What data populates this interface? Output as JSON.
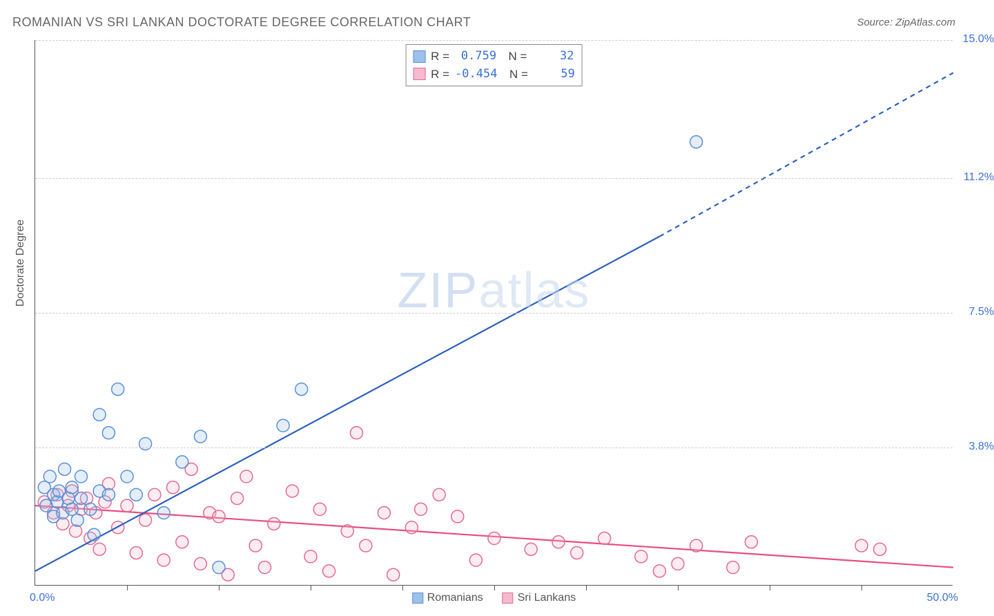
{
  "title": "ROMANIAN VS SRI LANKAN DOCTORATE DEGREE CORRELATION CHART",
  "source": "Source: ZipAtlas.com",
  "y_axis_label": "Doctorate Degree",
  "watermark": "ZIPatlas",
  "chart": {
    "type": "scatter",
    "xlim": [
      0,
      50
    ],
    "ylim": [
      0,
      15
    ],
    "x_min_label": "0.0%",
    "x_max_label": "50.0%",
    "x_tick_positions": [
      5,
      10,
      15,
      20,
      25,
      30,
      35,
      40,
      45
    ],
    "y_ticks": [
      {
        "v": 15.0,
        "label": "15.0%"
      },
      {
        "v": 11.2,
        "label": "11.2%"
      },
      {
        "v": 7.5,
        "label": "7.5%"
      },
      {
        "v": 3.8,
        "label": "3.8%"
      }
    ],
    "grid_color": "#cccccc",
    "axis_color": "#555555",
    "background_color": "#ffffff",
    "marker_radius": 9,
    "marker_stroke_width": 1.5,
    "marker_fill_opacity": 0.28,
    "trend_line_width": 2.2,
    "series": [
      {
        "name": "Romanians",
        "color": "#5a8fd6",
        "fill": "#9ec1ea",
        "line_color": "#2b5fbf",
        "trend": {
          "x1": 0,
          "y1": 0.4,
          "x2": 34,
          "y2": 9.6,
          "x3": 50,
          "y3": 14.1,
          "dashed_after": 34
        },
        "R": "0.759",
        "N": "32",
        "points": [
          [
            0.5,
            2.7
          ],
          [
            0.6,
            2.2
          ],
          [
            0.8,
            3.0
          ],
          [
            1.0,
            1.9
          ],
          [
            1.0,
            2.5
          ],
          [
            1.2,
            2.3
          ],
          [
            1.3,
            2.6
          ],
          [
            1.5,
            2.0
          ],
          [
            1.6,
            3.2
          ],
          [
            1.8,
            2.4
          ],
          [
            2.0,
            2.1
          ],
          [
            2.0,
            2.7
          ],
          [
            2.3,
            1.8
          ],
          [
            2.5,
            2.4
          ],
          [
            2.5,
            3.0
          ],
          [
            3.0,
            2.1
          ],
          [
            3.2,
            1.4
          ],
          [
            3.5,
            2.6
          ],
          [
            3.5,
            4.7
          ],
          [
            4.0,
            4.2
          ],
          [
            4.0,
            2.5
          ],
          [
            4.5,
            5.4
          ],
          [
            5.0,
            3.0
          ],
          [
            5.5,
            2.5
          ],
          [
            6.0,
            3.9
          ],
          [
            7.0,
            2.0
          ],
          [
            8.0,
            3.4
          ],
          [
            9.0,
            4.1
          ],
          [
            10.0,
            0.5
          ],
          [
            13.5,
            4.4
          ],
          [
            14.5,
            5.4
          ],
          [
            36.0,
            12.2
          ]
        ]
      },
      {
        "name": "Sri Lankans",
        "color": "#e26a8f",
        "fill": "#f7b9cd",
        "line_color": "#e84d7e",
        "trend": {
          "x1": 0,
          "y1": 2.2,
          "x2": 50,
          "y2": 0.5
        },
        "R": "-0.454",
        "N": "59",
        "points": [
          [
            0.5,
            2.3
          ],
          [
            1.0,
            2.0
          ],
          [
            1.2,
            2.5
          ],
          [
            1.5,
            1.7
          ],
          [
            1.8,
            2.2
          ],
          [
            2.0,
            2.6
          ],
          [
            2.2,
            1.5
          ],
          [
            2.5,
            2.1
          ],
          [
            2.8,
            2.4
          ],
          [
            3.0,
            1.3
          ],
          [
            3.3,
            2.0
          ],
          [
            3.5,
            1.0
          ],
          [
            3.8,
            2.3
          ],
          [
            4.0,
            2.8
          ],
          [
            4.5,
            1.6
          ],
          [
            5.0,
            2.2
          ],
          [
            5.5,
            0.9
          ],
          [
            6.0,
            1.8
          ],
          [
            6.5,
            2.5
          ],
          [
            7.0,
            0.7
          ],
          [
            7.5,
            2.7
          ],
          [
            8.0,
            1.2
          ],
          [
            8.5,
            3.2
          ],
          [
            9.0,
            0.6
          ],
          [
            9.5,
            2.0
          ],
          [
            10.0,
            1.9
          ],
          [
            10.5,
            0.3
          ],
          [
            11.0,
            2.4
          ],
          [
            11.5,
            3.0
          ],
          [
            12.0,
            1.1
          ],
          [
            12.5,
            0.5
          ],
          [
            13.0,
            1.7
          ],
          [
            14.0,
            2.6
          ],
          [
            15.0,
            0.8
          ],
          [
            15.5,
            2.1
          ],
          [
            16.0,
            0.4
          ],
          [
            17.0,
            1.5
          ],
          [
            17.5,
            4.2
          ],
          [
            18.0,
            1.1
          ],
          [
            19.0,
            2.0
          ],
          [
            19.5,
            0.3
          ],
          [
            20.5,
            1.6
          ],
          [
            21.0,
            2.1
          ],
          [
            22.0,
            2.5
          ],
          [
            23.0,
            1.9
          ],
          [
            24.0,
            0.7
          ],
          [
            25.0,
            1.3
          ],
          [
            27.0,
            1.0
          ],
          [
            28.5,
            1.2
          ],
          [
            29.5,
            0.9
          ],
          [
            31.0,
            1.3
          ],
          [
            33.0,
            0.8
          ],
          [
            34.0,
            0.4
          ],
          [
            35.0,
            0.6
          ],
          [
            36.0,
            1.1
          ],
          [
            38.0,
            0.5
          ],
          [
            39.0,
            1.2
          ],
          [
            45.0,
            1.1
          ],
          [
            46.0,
            1.0
          ]
        ]
      }
    ]
  }
}
